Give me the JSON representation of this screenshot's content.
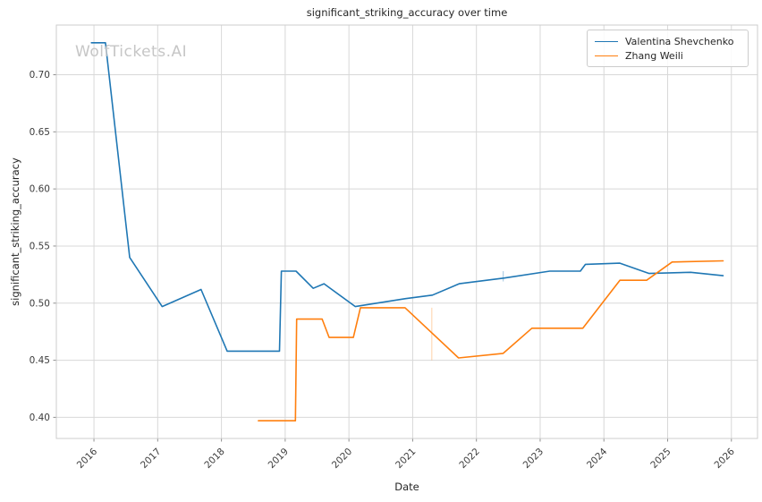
{
  "watermark": "WolfTickets.AI",
  "chart_data": {
    "type": "line",
    "title": "significant_striking_accuracy over time",
    "xlabel": "Date",
    "ylabel": "significant_striking_accuracy",
    "xlim": [
      2015.41,
      2026.41
    ],
    "ylim": [
      0.3815,
      0.7435
    ],
    "x_ticks": [
      2016,
      2017,
      2018,
      2019,
      2020,
      2021,
      2022,
      2023,
      2024,
      2025,
      2026
    ],
    "y_ticks": [
      0.4,
      0.45,
      0.5,
      0.55,
      0.6,
      0.65,
      0.7
    ],
    "grid": true,
    "background": "#ffffff",
    "grid_color": "#d8d8d8",
    "spine_color": "#cccccc",
    "tick_color": "#8f8f8f",
    "tick_label_color": "#3b3b3b",
    "legend_position": "upper right",
    "series": [
      {
        "name": "Valentina Shevchenko",
        "color": "#1f77b4",
        "points": [
          [
            2015.96,
            0.728
          ],
          [
            2016.18,
            0.728
          ],
          [
            2016.56,
            0.54
          ],
          [
            2017.07,
            0.497
          ],
          [
            2017.68,
            0.512
          ],
          [
            2018.09,
            0.458
          ],
          [
            2018.91,
            0.458
          ],
          [
            2018.94,
            0.528
          ],
          [
            2019.17,
            0.528
          ],
          [
            2019.44,
            0.513
          ],
          [
            2019.61,
            0.517
          ],
          [
            2020.1,
            0.497
          ],
          [
            2020.89,
            0.504
          ],
          [
            2021.31,
            0.507
          ],
          [
            2021.73,
            0.517
          ],
          [
            2022.44,
            0.522
          ],
          [
            2023.15,
            0.528
          ],
          [
            2023.63,
            0.528
          ],
          [
            2023.71,
            0.534
          ],
          [
            2024.25,
            0.535
          ],
          [
            2024.71,
            0.526
          ],
          [
            2025.36,
            0.527
          ],
          [
            2025.87,
            0.524
          ]
        ]
      },
      {
        "name": "Zhang Weili",
        "color": "#ff7f0e",
        "points": [
          [
            2018.58,
            0.397
          ],
          [
            2019.16,
            0.397
          ],
          [
            2019.18,
            0.486
          ],
          [
            2019.58,
            0.486
          ],
          [
            2019.69,
            0.47
          ],
          [
            2020.07,
            0.47
          ],
          [
            2020.18,
            0.496
          ],
          [
            2020.88,
            0.496
          ],
          [
            2021.72,
            0.452
          ],
          [
            2022.42,
            0.456
          ],
          [
            2022.87,
            0.478
          ],
          [
            2023.67,
            0.478
          ],
          [
            2024.25,
            0.52
          ],
          [
            2024.67,
            0.52
          ],
          [
            2025.07,
            0.536
          ],
          [
            2025.87,
            0.537
          ]
        ]
      }
    ],
    "annotations": [
      {
        "type": "vline",
        "x": 2021.3,
        "y1": 0.45,
        "y2": 0.496,
        "color": "#ff7f0e",
        "opacity": 0.3
      },
      {
        "type": "vline",
        "x": 2022.42,
        "y1": 0.519,
        "y2": 0.528,
        "color": "#1f77b4",
        "opacity": 0.35
      }
    ]
  }
}
